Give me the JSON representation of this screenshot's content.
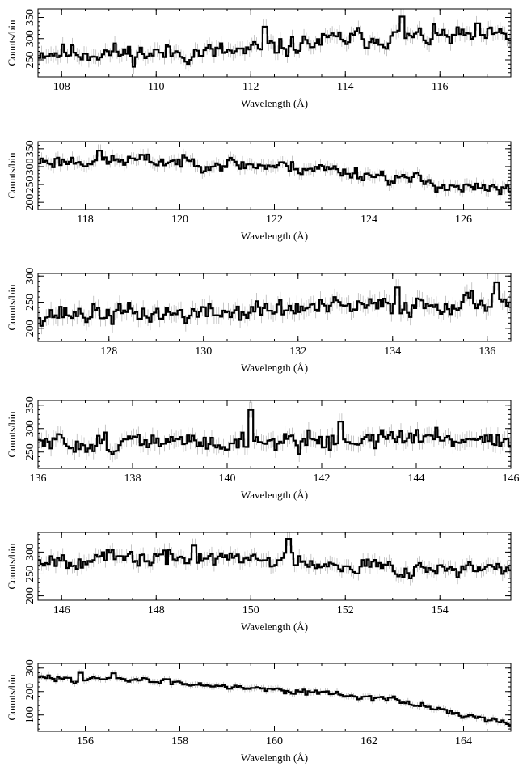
{
  "chart_data": [
    {
      "type": "line",
      "style": "step-histogram-with-error-bars",
      "xlabel": "Wavelength (Å)",
      "ylabel": "Counts/bin",
      "xlim": [
        107.5,
        117.5
      ],
      "ylim": [
        210,
        370
      ],
      "xticks": [
        108,
        110,
        112,
        114,
        116
      ],
      "yticks": [
        250,
        300,
        350
      ],
      "x_minor_step": 0.5,
      "y_minor_step": 10,
      "trend": [
        [
          107.5,
          268
        ],
        [
          110,
          265
        ],
        [
          112,
          270
        ],
        [
          114,
          300
        ],
        [
          116,
          305
        ],
        [
          117.5,
          305
        ]
      ],
      "noise": 24,
      "errorbar": 17,
      "bin_width": 0.05,
      "seed": 11,
      "spikes": [
        [
          115.2,
          352
        ],
        [
          112.3,
          328
        ],
        [
          116.8,
          336
        ]
      ]
    },
    {
      "type": "line",
      "style": "step-histogram-with-error-bars",
      "xlabel": "Wavelength (Å)",
      "ylabel": "Counts/bin",
      "xlim": [
        117,
        127
      ],
      "ylim": [
        180,
        370
      ],
      "xticks": [
        118,
        120,
        122,
        124,
        126
      ],
      "yticks": [
        200,
        250,
        300,
        350
      ],
      "x_minor_step": 0.5,
      "y_minor_step": 10,
      "trend": [
        [
          117,
          315
        ],
        [
          119,
          318
        ],
        [
          121,
          308
        ],
        [
          123,
          295
        ],
        [
          125,
          262
        ],
        [
          126,
          240
        ],
        [
          127,
          232
        ]
      ],
      "noise": 20,
      "errorbar": 17,
      "bin_width": 0.05,
      "seed": 23,
      "spikes": [
        [
          118.3,
          345
        ]
      ]
    },
    {
      "type": "line",
      "style": "step-histogram-with-error-bars",
      "xlabel": "Wavelength (Å)",
      "ylabel": "Counts/bin",
      "xlim": [
        126.5,
        136.5
      ],
      "ylim": [
        175,
        305
      ],
      "xticks": [
        128,
        130,
        132,
        134,
        136
      ],
      "yticks": [
        200,
        250,
        300
      ],
      "x_minor_step": 0.5,
      "y_minor_step": 10,
      "trend": [
        [
          126.5,
          228
        ],
        [
          130,
          228
        ],
        [
          132,
          238
        ],
        [
          134,
          242
        ],
        [
          136.5,
          255
        ]
      ],
      "noise": 20,
      "errorbar": 16,
      "bin_width": 0.05,
      "seed": 37,
      "spikes": [
        [
          136.2,
          288
        ],
        [
          134.1,
          278
        ]
      ]
    },
    {
      "type": "line",
      "style": "step-histogram-with-error-bars",
      "xlabel": "Wavelength (Å)",
      "ylabel": "Counts/bin",
      "xlim": [
        136,
        146
      ],
      "ylim": [
        215,
        360
      ],
      "xticks": [
        136,
        138,
        140,
        142,
        144,
        146
      ],
      "yticks": [
        250,
        300,
        350
      ],
      "x_minor_step": 0.5,
      "y_minor_step": 10,
      "trend": [
        [
          136,
          268
        ],
        [
          140,
          272
        ],
        [
          144,
          280
        ],
        [
          146,
          278
        ]
      ],
      "noise": 22,
      "errorbar": 17,
      "bin_width": 0.05,
      "seed": 51,
      "spikes": [
        [
          140.5,
          340
        ],
        [
          142.4,
          315
        ]
      ]
    },
    {
      "type": "line",
      "style": "step-histogram-with-error-bars",
      "xlabel": "Wavelength (Å)",
      "ylabel": "Counts/bin",
      "xlim": [
        145.5,
        155.5
      ],
      "ylim": [
        190,
        345
      ],
      "xticks": [
        146,
        148,
        150,
        152,
        154
      ],
      "yticks": [
        200,
        250,
        300
      ],
      "x_minor_step": 0.5,
      "y_minor_step": 10,
      "trend": [
        [
          145.5,
          285
        ],
        [
          149,
          285
        ],
        [
          151,
          282
        ],
        [
          153,
          265
        ],
        [
          155.5,
          258
        ]
      ],
      "noise": 20,
      "errorbar": 16,
      "bin_width": 0.05,
      "seed": 67,
      "spikes": [
        [
          150.8,
          330
        ],
        [
          148.8,
          315
        ]
      ]
    },
    {
      "type": "line",
      "style": "step-histogram-with-error-bars",
      "xlabel": "Wavelength (Å)",
      "ylabel": "Counts/bin",
      "xlim": [
        155,
        165
      ],
      "ylim": [
        30,
        320
      ],
      "xticks": [
        156,
        158,
        160,
        162,
        164
      ],
      "yticks": [
        100,
        200,
        300
      ],
      "x_minor_step": 0.5,
      "y_minor_step": 20,
      "trend": [
        [
          155,
          258
        ],
        [
          157,
          250
        ],
        [
          159,
          225
        ],
        [
          161,
          195
        ],
        [
          162.5,
          165
        ],
        [
          163.5,
          125
        ],
        [
          164.5,
          75
        ],
        [
          165,
          60
        ]
      ],
      "noise": 13,
      "errorbar": 14,
      "bin_width": 0.05,
      "seed": 83,
      "spikes": [
        [
          155.9,
          280
        ],
        [
          156.6,
          278
        ]
      ]
    }
  ]
}
